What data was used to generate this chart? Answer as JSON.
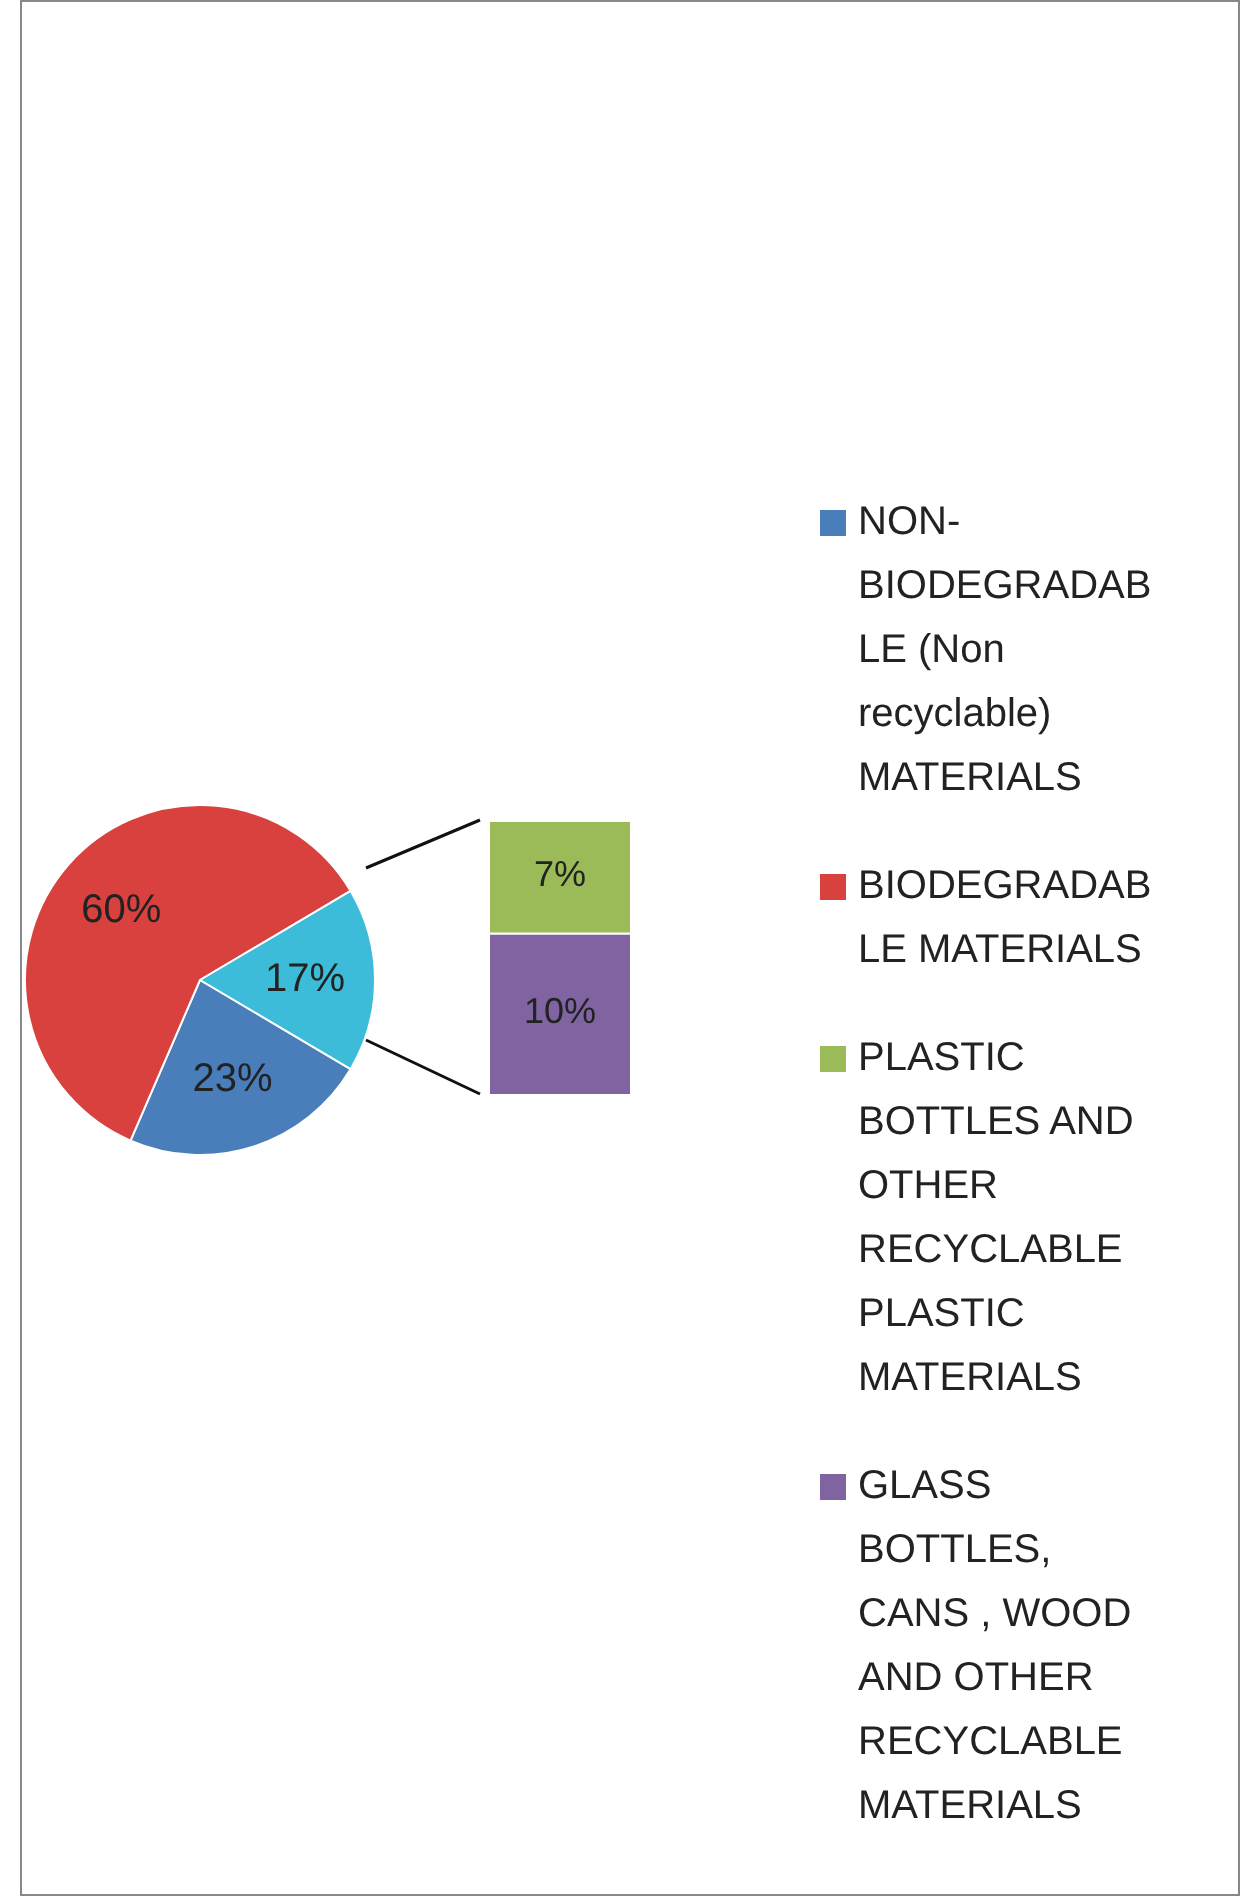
{
  "chart_data": [
    {
      "type": "pie",
      "categories": [
        "NON-BIODEGRADABLE (Non recyclable) MATERIALS",
        "BIODEGRADABLE MATERIALS",
        null
      ],
      "values": [
        23,
        60,
        17
      ],
      "colors": [
        "#4a7ebb",
        "#d9413e",
        "#3cbcd8"
      ],
      "value_labels": [
        "23%",
        "60%",
        "17%"
      ],
      "legend": "right"
    },
    {
      "type": "bar",
      "stacked": true,
      "categories": [
        null
      ],
      "series": [
        {
          "name": "GLASS BOTTLES, CANS , WOOD AND OTHER RECYCLABLE MATERIALS",
          "color": "#8064a2",
          "values": [
            10
          ],
          "value_labels": [
            "10%"
          ]
        },
        {
          "name": "PLASTIC BOTTLES AND OTHER RECYCLABLE PLASTIC MATERIALS",
          "color": "#9bbb59",
          "values": [
            7
          ],
          "value_labels": [
            "7%"
          ]
        }
      ],
      "tick_labels": false,
      "legend": "right"
    }
  ]
}
